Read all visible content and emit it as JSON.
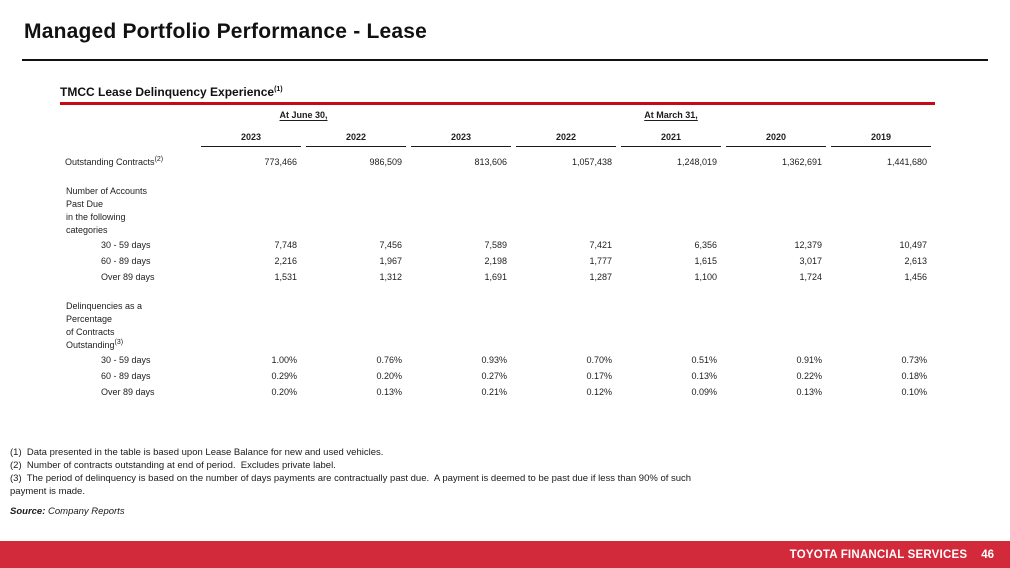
{
  "page": {
    "title": "Managed Portfolio Performance - Lease"
  },
  "colors": {
    "heading_rule_red": "#c80815",
    "footer_bar_red": "#d2293b",
    "text": "#1d1d1d"
  },
  "table": {
    "heading": "TMCC Lease Delinquency Experience",
    "heading_sup": "(1)",
    "group_headers": [
      "At June 30,",
      "At March 31,"
    ],
    "year_columns": [
      "2023",
      "2022",
      "2023",
      "2022",
      "2021",
      "2020",
      "2019"
    ],
    "rows": {
      "outstanding": {
        "label": "Outstanding Contracts",
        "sup": "(2)",
        "values": [
          "773,466",
          "986,509",
          "813,606",
          "1,057,438",
          "1,248,019",
          "1,362,691",
          "1,441,680"
        ]
      },
      "accounts_section": {
        "label": "Number of Accounts\nPast Due\nin the following\ncategories"
      },
      "accounts_rows": [
        {
          "label": "30 - 59 days",
          "values": [
            "7,748",
            "7,456",
            "7,589",
            "7,421",
            "6,356",
            "12,379",
            "10,497"
          ]
        },
        {
          "label": "60 - 89 days",
          "values": [
            "2,216",
            "1,967",
            "2,198",
            "1,777",
            "1,615",
            "3,017",
            "2,613"
          ]
        },
        {
          "label": "Over 89 days",
          "values": [
            "1,531",
            "1,312",
            "1,691",
            "1,287",
            "1,100",
            "1,724",
            "1,456"
          ]
        }
      ],
      "pct_section": {
        "label": "Delinquencies as a\nPercentage\nof Contracts\nOutstanding",
        "sup": "(3)"
      },
      "pct_rows": [
        {
          "label": "30 - 59 days",
          "values": [
            "1.00%",
            "0.76%",
            "0.93%",
            "0.70%",
            "0.51%",
            "0.91%",
            "0.73%"
          ]
        },
        {
          "label": "60 - 89 days",
          "values": [
            "0.29%",
            "0.20%",
            "0.27%",
            "0.17%",
            "0.13%",
            "0.22%",
            "0.18%"
          ]
        },
        {
          "label": "Over 89 days",
          "values": [
            "0.20%",
            "0.13%",
            "0.21%",
            "0.12%",
            "0.09%",
            "0.13%",
            "0.10%"
          ]
        }
      ]
    }
  },
  "footnotes": [
    "(1)  Data presented in the table is based upon Lease Balance for new and used vehicles.",
    "(2)  Number of contracts outstanding at end of period.  Excludes private label.",
    "(3)  The period of delinquency is based on the number of days payments are contractually past due.  A payment is deemed to be past due if less than 90% of such payment is made."
  ],
  "source": {
    "label": "Source:",
    "text": " Company Reports"
  },
  "footer": {
    "brand": "TOYOTA FINANCIAL SERVICES",
    "page_number": "46"
  }
}
